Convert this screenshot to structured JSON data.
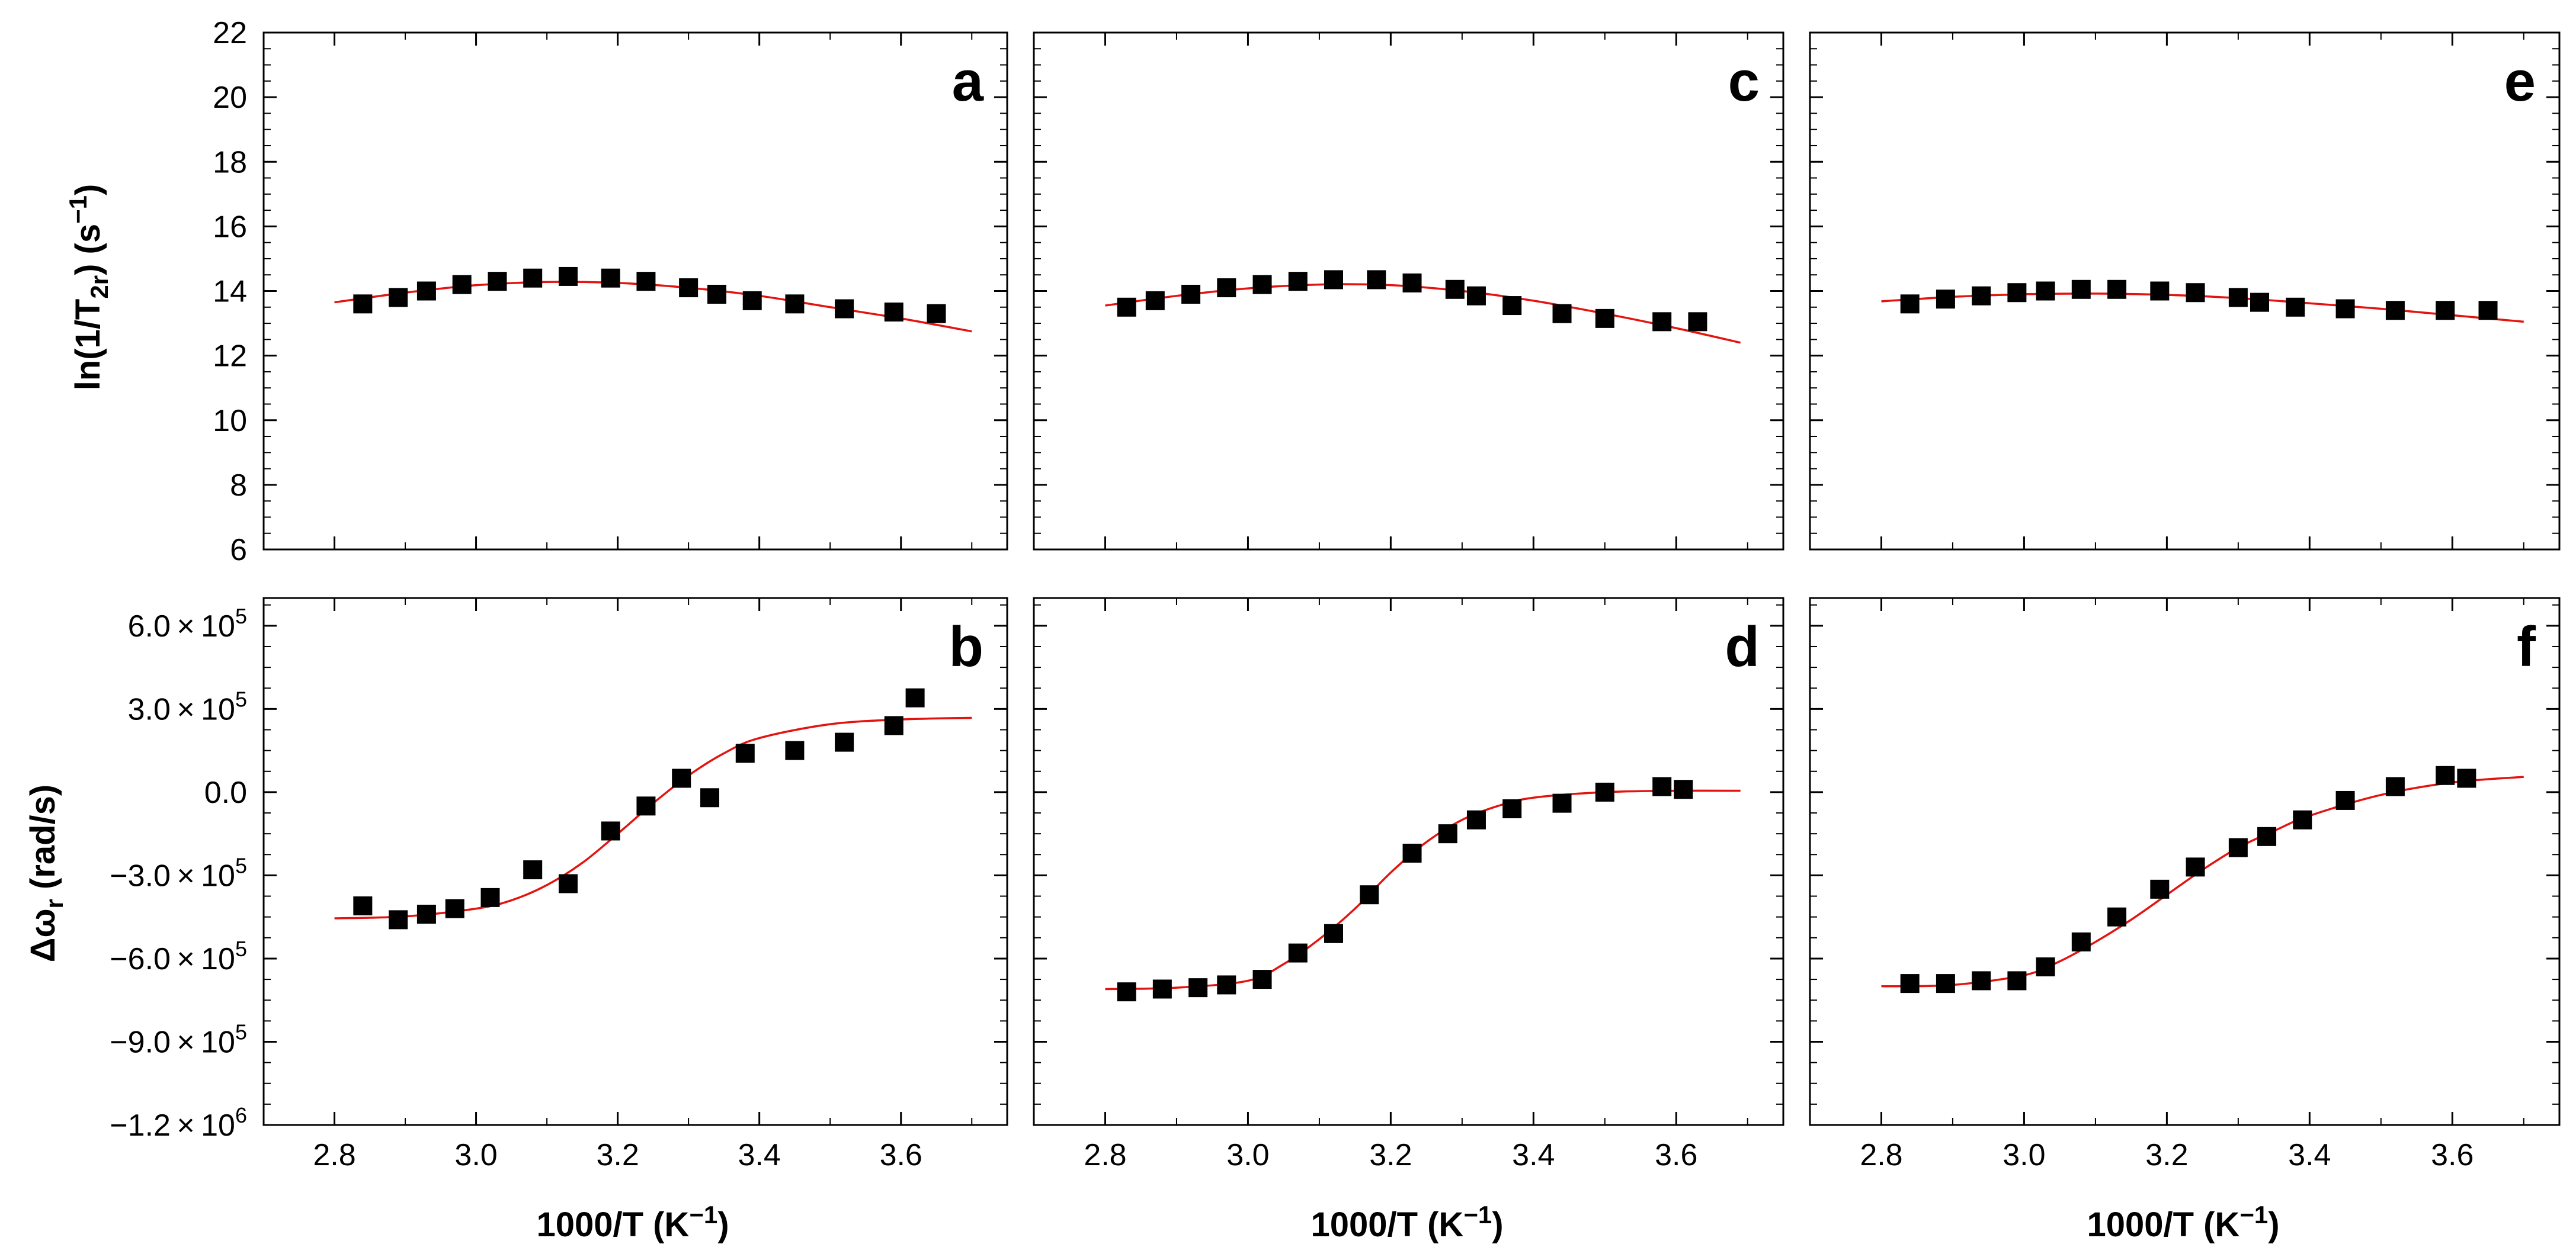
{
  "figure": {
    "ylabel_top": "ln(1/T₂ᵣ) (s⁻¹)",
    "ylabel_top_parts": {
      "pre": "ln(1/T",
      "sub": "2r",
      "post": ") (s",
      "sup": "−1",
      "end": ")"
    },
    "ylabel_bottom_parts": {
      "pre": "Δω",
      "sub": "r",
      "post": " (rad/s)"
    },
    "xlabel_parts": {
      "pre": "1000/T (K",
      "sup": "−1",
      "end": ")"
    }
  },
  "chart_data": [
    {
      "panel": "a",
      "type": "scatter",
      "x": [
        2.84,
        2.89,
        2.93,
        2.98,
        3.03,
        3.08,
        3.13,
        3.19,
        3.24,
        3.3,
        3.34,
        3.39,
        3.45,
        3.52,
        3.59,
        3.65
      ],
      "y": [
        13.6,
        13.8,
        14.0,
        14.2,
        14.3,
        14.4,
        14.45,
        14.4,
        14.3,
        14.1,
        13.9,
        13.7,
        13.6,
        13.45,
        13.35,
        13.3
      ],
      "fit": {
        "x": [
          2.8,
          2.9,
          3.0,
          3.1,
          3.2,
          3.3,
          3.4,
          3.5,
          3.6,
          3.7
        ],
        "y": [
          13.65,
          13.95,
          14.18,
          14.28,
          14.25,
          14.1,
          13.85,
          13.5,
          13.15,
          12.75
        ]
      },
      "xlim": [
        2.7,
        3.75
      ],
      "ylim": [
        6,
        22
      ],
      "yticks": [
        6,
        8,
        10,
        12,
        14,
        16,
        18,
        20,
        22
      ]
    },
    {
      "panel": "b",
      "type": "scatter",
      "x": [
        2.84,
        2.89,
        2.93,
        2.97,
        3.02,
        3.08,
        3.13,
        3.19,
        3.24,
        3.29,
        3.33,
        3.38,
        3.45,
        3.52,
        3.59,
        3.62
      ],
      "y": [
        -410000,
        -460000,
        -440000,
        -420000,
        -380000,
        -280000,
        -330000,
        -140000,
        -50000,
        50000,
        -20000,
        140000,
        150000,
        180000,
        240000,
        340000
      ],
      "fit": {
        "x": [
          2.8,
          2.9,
          3.0,
          3.05,
          3.1,
          3.15,
          3.2,
          3.25,
          3.3,
          3.35,
          3.4,
          3.5,
          3.6,
          3.7
        ],
        "y": [
          -455000,
          -448000,
          -420000,
          -390000,
          -335000,
          -255000,
          -150000,
          -40000,
          60000,
          140000,
          195000,
          245000,
          262000,
          268000
        ]
      },
      "xlim": [
        2.7,
        3.75
      ],
      "ylim": [
        -1200000,
        700000
      ],
      "yticks": [
        600000,
        300000,
        0,
        -300000,
        -600000,
        -900000,
        -1200000
      ]
    },
    {
      "panel": "c",
      "type": "scatter",
      "x": [
        2.83,
        2.87,
        2.92,
        2.97,
        3.02,
        3.07,
        3.12,
        3.18,
        3.23,
        3.29,
        3.32,
        3.37,
        3.44,
        3.5,
        3.58,
        3.63
      ],
      "y": [
        13.5,
        13.7,
        13.9,
        14.1,
        14.2,
        14.3,
        14.35,
        14.35,
        14.25,
        14.05,
        13.85,
        13.55,
        13.3,
        13.15,
        13.05,
        13.05
      ],
      "fit": {
        "x": [
          2.8,
          2.9,
          3.0,
          3.1,
          3.2,
          3.3,
          3.4,
          3.5,
          3.6,
          3.69
        ],
        "y": [
          13.55,
          13.85,
          14.08,
          14.2,
          14.18,
          14.0,
          13.7,
          13.3,
          12.85,
          12.4
        ]
      },
      "xlim": [
        2.7,
        3.75
      ],
      "ylim": [
        6,
        22
      ],
      "yticks": [
        6,
        8,
        10,
        12,
        14,
        16,
        18,
        20,
        22
      ]
    },
    {
      "panel": "d",
      "type": "scatter",
      "x": [
        2.83,
        2.88,
        2.93,
        2.97,
        3.02,
        3.07,
        3.12,
        3.17,
        3.23,
        3.28,
        3.32,
        3.37,
        3.44,
        3.5,
        3.58,
        3.61
      ],
      "y": [
        -720000,
        -710000,
        -705000,
        -695000,
        -675000,
        -580000,
        -510000,
        -370000,
        -220000,
        -150000,
        -100000,
        -60000,
        -40000,
        0,
        20000,
        10000
      ],
      "fit": {
        "x": [
          2.8,
          2.9,
          3.0,
          3.05,
          3.1,
          3.15,
          3.2,
          3.25,
          3.3,
          3.35,
          3.4,
          3.5,
          3.6,
          3.69
        ],
        "y": [
          -710000,
          -705000,
          -680000,
          -620000,
          -530000,
          -420000,
          -290000,
          -180000,
          -100000,
          -50000,
          -20000,
          0,
          5000,
          5000
        ]
      },
      "xlim": [
        2.7,
        3.75
      ],
      "ylim": [
        -1200000,
        700000
      ],
      "yticks": [
        600000,
        300000,
        0,
        -300000,
        -600000,
        -900000,
        -1200000
      ]
    },
    {
      "panel": "e",
      "type": "scatter",
      "x": [
        2.84,
        2.89,
        2.94,
        2.99,
        3.03,
        3.08,
        3.13,
        3.19,
        3.24,
        3.3,
        3.33,
        3.38,
        3.45,
        3.52,
        3.59,
        3.65
      ],
      "y": [
        13.6,
        13.75,
        13.85,
        13.95,
        14.0,
        14.05,
        14.05,
        14.0,
        13.95,
        13.8,
        13.65,
        13.5,
        13.45,
        13.4,
        13.4,
        13.4
      ],
      "fit": {
        "x": [
          2.8,
          2.9,
          3.0,
          3.1,
          3.2,
          3.3,
          3.4,
          3.5,
          3.6,
          3.7
        ],
        "y": [
          13.68,
          13.82,
          13.9,
          13.92,
          13.88,
          13.78,
          13.62,
          13.45,
          13.25,
          13.05
        ]
      },
      "xlim": [
        2.7,
        3.75
      ],
      "ylim": [
        6,
        22
      ],
      "yticks": [
        6,
        8,
        10,
        12,
        14,
        16,
        18,
        20,
        22
      ]
    },
    {
      "panel": "f",
      "type": "scatter",
      "x": [
        2.84,
        2.89,
        2.94,
        2.99,
        3.03,
        3.08,
        3.13,
        3.19,
        3.24,
        3.3,
        3.34,
        3.39,
        3.45,
        3.52,
        3.59,
        3.62
      ],
      "y": [
        -690000,
        -690000,
        -680000,
        -680000,
        -630000,
        -540000,
        -450000,
        -350000,
        -270000,
        -200000,
        -160000,
        -100000,
        -30000,
        20000,
        60000,
        50000
      ],
      "fit": {
        "x": [
          2.8,
          2.9,
          3.0,
          3.05,
          3.1,
          3.15,
          3.2,
          3.25,
          3.3,
          3.35,
          3.4,
          3.5,
          3.6,
          3.7
        ],
        "y": [
          -700000,
          -695000,
          -660000,
          -610000,
          -540000,
          -460000,
          -370000,
          -280000,
          -200000,
          -140000,
          -85000,
          -10000,
          35000,
          55000
        ]
      },
      "xlim": [
        2.7,
        3.75
      ],
      "ylim": [
        -1200000,
        700000
      ],
      "yticks": [
        600000,
        300000,
        0,
        -300000,
        -600000,
        -900000,
        -1200000
      ]
    }
  ],
  "xticks": [
    "2.8",
    "3.0",
    "3.2",
    "3.4",
    "3.6"
  ],
  "xtick_values": [
    2.8,
    3.0,
    3.2,
    3.4,
    3.6
  ],
  "ytick_labels_top": [
    "6",
    "8",
    "10",
    "12",
    "14",
    "16",
    "18",
    "20",
    "22"
  ],
  "ytick_labels_bottom": [
    "6.0 × 10",
    "3.0 × 10",
    "0.0",
    "−3.0 × 10",
    "−6.0 × 10",
    "−9.0 × 10",
    "−1.2 × 10"
  ],
  "ytick_exponents_bottom": [
    "5",
    "5",
    "",
    "5",
    "5",
    "5",
    "6"
  ],
  "colors": {
    "points": "#000000",
    "fit": "#e3140f",
    "axes": "#000000"
  }
}
